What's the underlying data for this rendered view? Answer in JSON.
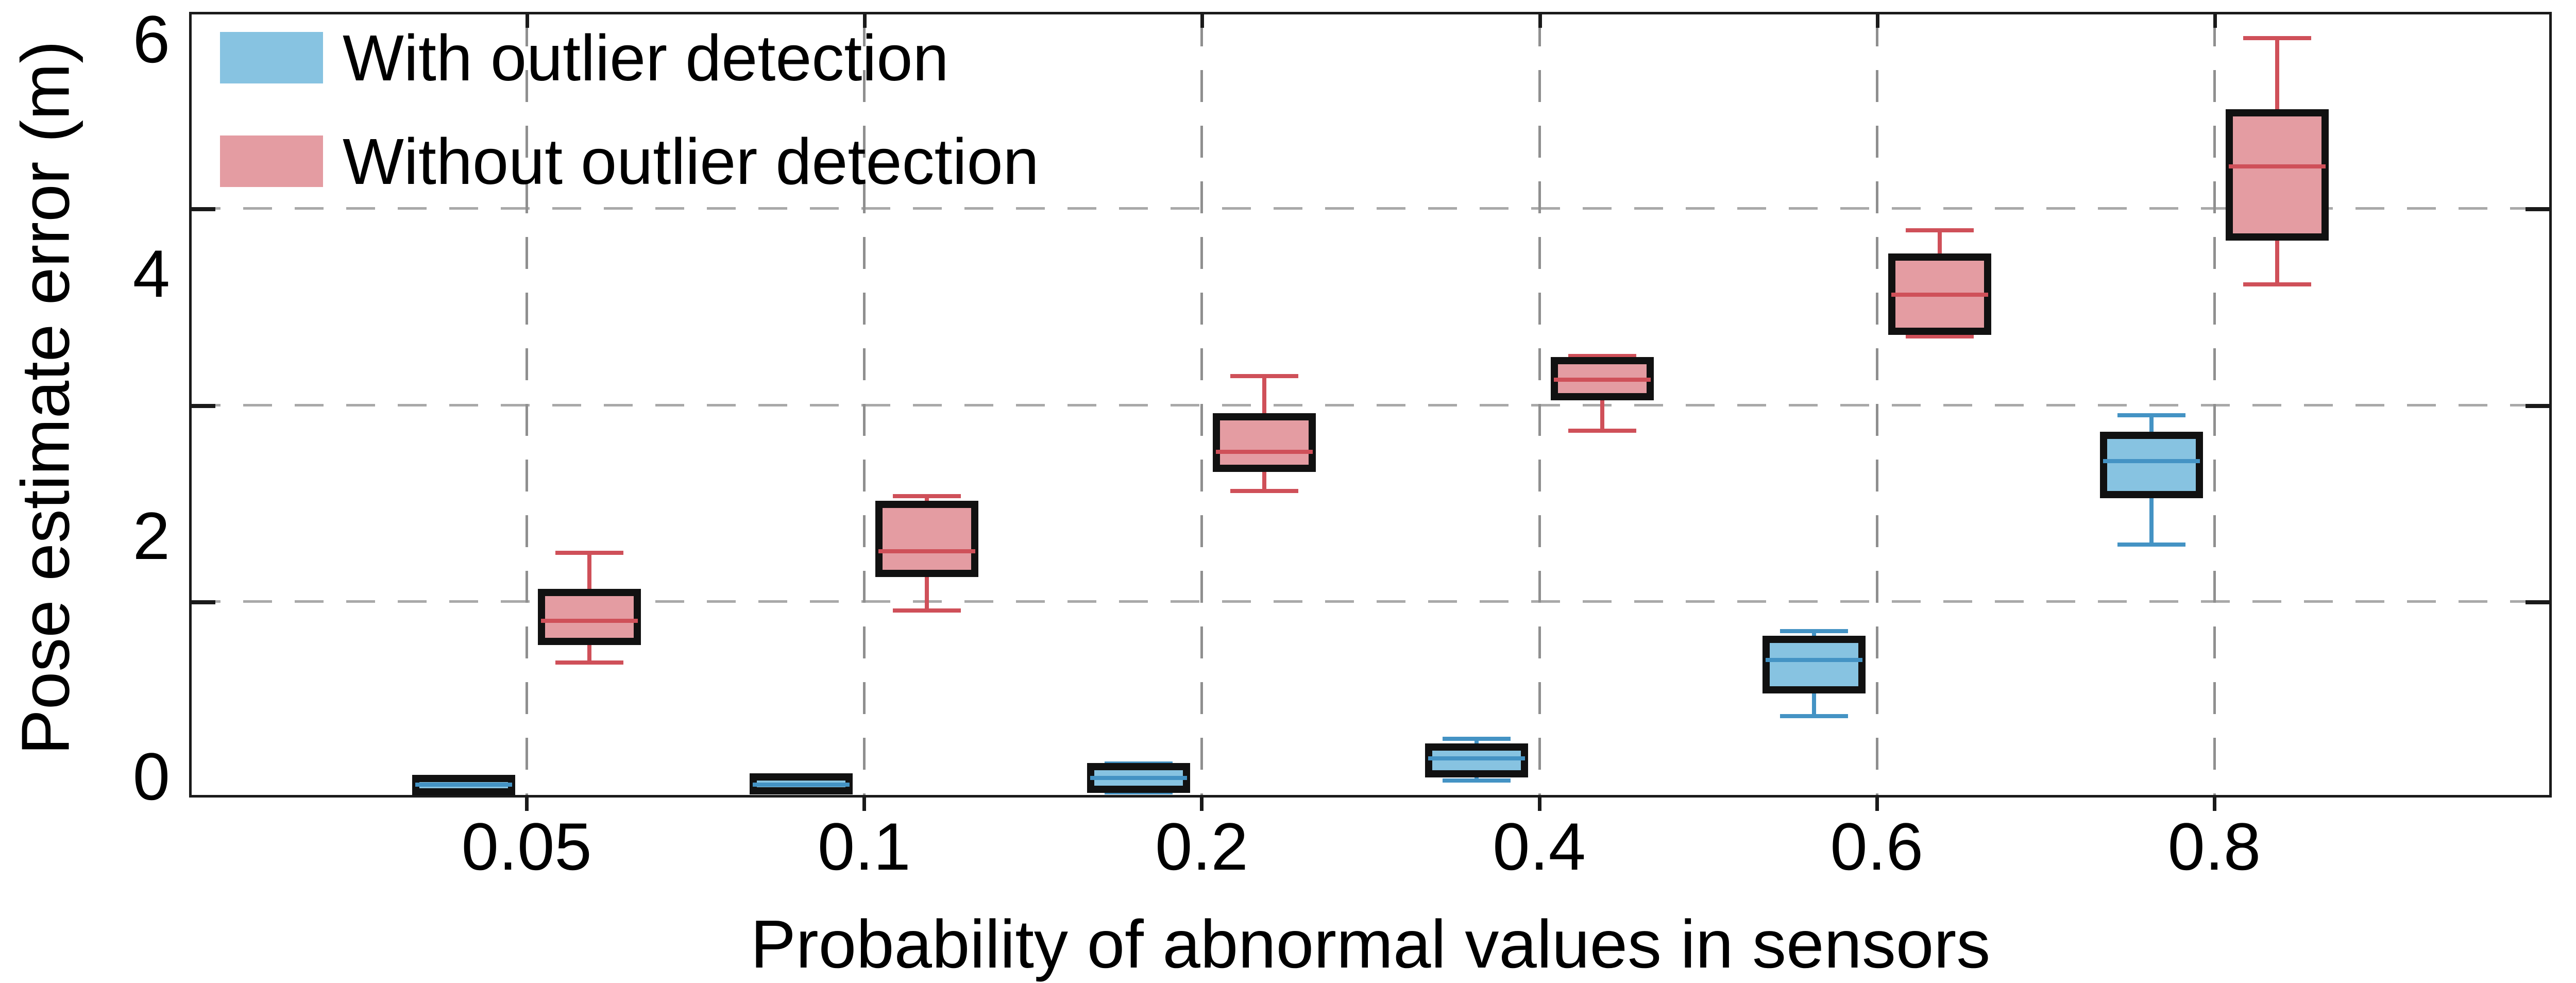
{
  "chart_data": {
    "type": "boxplot",
    "title": "",
    "xlabel": "Probability of abnormal values in sensors",
    "ylabel": "Pose estimate error (m)",
    "categories": [
      "0.05",
      "0.1",
      "0.2",
      "0.4",
      "0.6",
      "0.8"
    ],
    "ylim": [
      0,
      6
    ],
    "y_ticks": [
      {
        "value": 6,
        "label": "6"
      },
      {
        "value": 4,
        "label": "4"
      },
      {
        "value": 2,
        "label": "2"
      },
      {
        "value": 0,
        "label": "0"
      }
    ],
    "y_gridlines": [
      4.5,
      3.0,
      1.5
    ],
    "grid": "dashed",
    "legend_position": "top-left-inside",
    "legend": [
      {
        "label": "With outlier detection",
        "color": "#87C3E1"
      },
      {
        "label": "Without outlier detection",
        "color": "#E49CA2"
      }
    ],
    "series": [
      {
        "name": "With outlier detection",
        "fill": "#87C3E1",
        "line_color": "#4493C4",
        "edge_color": "#111111",
        "boxes": [
          {
            "category": "0.05",
            "whisker_low": 0.05,
            "q1": 0.07,
            "median": 0.1,
            "q3": 0.12,
            "whisker_high": 0.13
          },
          {
            "category": "0.1",
            "whisker_low": 0.06,
            "q1": 0.08,
            "median": 0.1,
            "q3": 0.13,
            "whisker_high": 0.14
          },
          {
            "category": "0.2",
            "whisker_low": 0.04,
            "q1": 0.09,
            "median": 0.15,
            "q3": 0.21,
            "whisker_high": 0.26
          },
          {
            "category": "0.4",
            "whisker_low": 0.13,
            "q1": 0.21,
            "median": 0.3,
            "q3": 0.36,
            "whisker_high": 0.45
          },
          {
            "category": "0.6",
            "whisker_low": 0.62,
            "q1": 0.85,
            "median": 1.05,
            "q3": 1.18,
            "whisker_high": 1.27
          },
          {
            "category": "0.8",
            "whisker_low": 1.93,
            "q1": 2.34,
            "median": 2.57,
            "q3": 2.74,
            "whisker_high": 2.92
          }
        ]
      },
      {
        "name": "Without outlier detection",
        "fill": "#E49CA2",
        "line_color": "#CF5059",
        "edge_color": "#111111",
        "boxes": [
          {
            "category": "0.05",
            "whisker_low": 1.03,
            "q1": 1.22,
            "median": 1.35,
            "q3": 1.54,
            "whisker_high": 1.87
          },
          {
            "category": "0.1",
            "whisker_low": 1.43,
            "q1": 1.74,
            "median": 1.88,
            "q3": 2.21,
            "whisker_high": 2.3
          },
          {
            "category": "0.2",
            "whisker_low": 2.34,
            "q1": 2.54,
            "median": 2.64,
            "q3": 2.88,
            "whisker_high": 3.22
          },
          {
            "category": "0.4",
            "whisker_low": 2.8,
            "q1": 3.09,
            "median": 3.19,
            "q3": 3.31,
            "whisker_high": 3.37
          },
          {
            "category": "0.6",
            "whisker_low": 3.52,
            "q1": 3.59,
            "median": 3.84,
            "q3": 4.1,
            "whisker_high": 4.33
          },
          {
            "category": "0.8",
            "whisker_low": 3.92,
            "q1": 4.31,
            "median": 4.82,
            "q3": 5.2,
            "whisker_high": 5.8
          }
        ]
      }
    ],
    "colors": {
      "axis_border": "#1a1a1a",
      "h_gridline": "#a9a9a9",
      "v_gridline": "#8f8f8f",
      "background": "#ffffff"
    }
  }
}
